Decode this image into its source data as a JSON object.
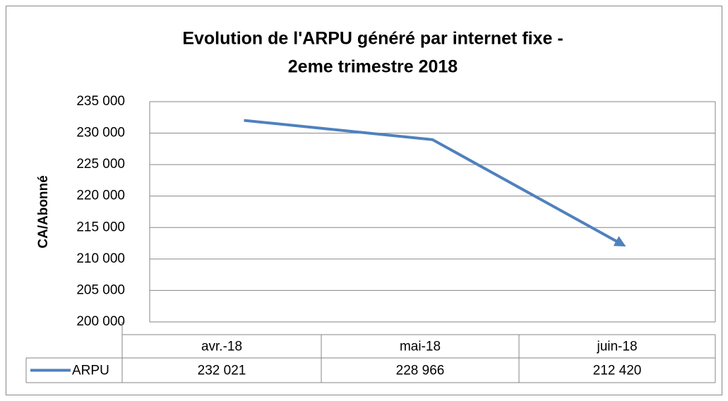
{
  "chart_data": {
    "type": "line",
    "title": [
      "Evolution de l'ARPU généré par internet fixe -",
      "2eme  trimestre 2018"
    ],
    "y_label": "CA/Abonné",
    "categories": [
      "avr.-18",
      "mai-18",
      "juin-18"
    ],
    "series": [
      {
        "name": "ARPU",
        "color": "#4f81bd",
        "values": [
          232021,
          228966,
          212420
        ],
        "value_labels": [
          "232 021",
          "228 966",
          "212 420"
        ]
      }
    ],
    "ylim": [
      200000,
      235000
    ],
    "yticks": [
      {
        "value": 200000,
        "label": "200 000"
      },
      {
        "value": 205000,
        "label": "205 000"
      },
      {
        "value": 210000,
        "label": "210 000"
      },
      {
        "value": 215000,
        "label": "215 000"
      },
      {
        "value": 220000,
        "label": "220 000"
      },
      {
        "value": 225000,
        "label": "225 000"
      },
      {
        "value": 230000,
        "label": "230 000"
      },
      {
        "value": 235000,
        "label": "235 000"
      }
    ],
    "grid": true
  }
}
